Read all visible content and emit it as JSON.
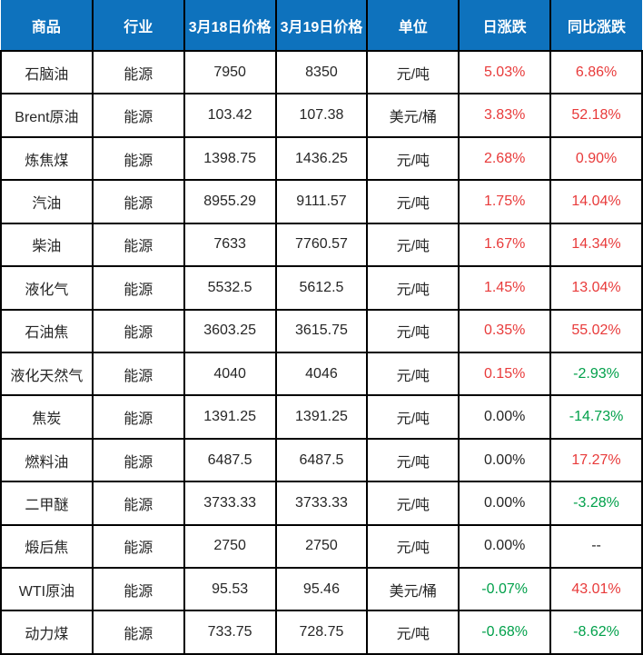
{
  "colors": {
    "header_bg": "#0e72bd",
    "header_text": "#ffffff",
    "up_red": "#e83a3a",
    "down_green": "#00a04a",
    "neutral_text": "#262626",
    "grid_border": "#000000"
  },
  "chart_data": {
    "type": "table",
    "columns": [
      "商品",
      "行业",
      "3月18日价格",
      "3月19日价格",
      "单位",
      "日涨跌",
      "同比涨跌"
    ],
    "rows": [
      {
        "name": "石脑油",
        "industry": "能源",
        "price_mar18": "7950",
        "price_mar19": "8350",
        "unit": "元/吨",
        "daily_change": "5.03%",
        "daily_tone": "up",
        "yoy_change": "6.86%",
        "yoy_tone": "up"
      },
      {
        "name": "Brent原油",
        "industry": "能源",
        "price_mar18": "103.42",
        "price_mar19": "107.38",
        "unit": "美元/桶",
        "daily_change": "3.83%",
        "daily_tone": "up",
        "yoy_change": "52.18%",
        "yoy_tone": "up"
      },
      {
        "name": "炼焦煤",
        "industry": "能源",
        "price_mar18": "1398.75",
        "price_mar19": "1436.25",
        "unit": "元/吨",
        "daily_change": "2.68%",
        "daily_tone": "up",
        "yoy_change": "0.90%",
        "yoy_tone": "up"
      },
      {
        "name": "汽油",
        "industry": "能源",
        "price_mar18": "8955.29",
        "price_mar19": "9111.57",
        "unit": "元/吨",
        "daily_change": "1.75%",
        "daily_tone": "up",
        "yoy_change": "14.04%",
        "yoy_tone": "up"
      },
      {
        "name": "柴油",
        "industry": "能源",
        "price_mar18": "7633",
        "price_mar19": "7760.57",
        "unit": "元/吨",
        "daily_change": "1.67%",
        "daily_tone": "up",
        "yoy_change": "14.34%",
        "yoy_tone": "up"
      },
      {
        "name": "液化气",
        "industry": "能源",
        "price_mar18": "5532.5",
        "price_mar19": "5612.5",
        "unit": "元/吨",
        "daily_change": "1.45%",
        "daily_tone": "up",
        "yoy_change": "13.04%",
        "yoy_tone": "up"
      },
      {
        "name": "石油焦",
        "industry": "能源",
        "price_mar18": "3603.25",
        "price_mar19": "3615.75",
        "unit": "元/吨",
        "daily_change": "0.35%",
        "daily_tone": "up",
        "yoy_change": "55.02%",
        "yoy_tone": "up"
      },
      {
        "name": "液化天然气",
        "industry": "能源",
        "price_mar18": "4040",
        "price_mar19": "4046",
        "unit": "元/吨",
        "daily_change": "0.15%",
        "daily_tone": "up",
        "yoy_change": "-2.93%",
        "yoy_tone": "down"
      },
      {
        "name": "焦炭",
        "industry": "能源",
        "price_mar18": "1391.25",
        "price_mar19": "1391.25",
        "unit": "元/吨",
        "daily_change": "0.00%",
        "daily_tone": "flat",
        "yoy_change": "-14.73%",
        "yoy_tone": "down"
      },
      {
        "name": "燃料油",
        "industry": "能源",
        "price_mar18": "6487.5",
        "price_mar19": "6487.5",
        "unit": "元/吨",
        "daily_change": "0.00%",
        "daily_tone": "flat",
        "yoy_change": "17.27%",
        "yoy_tone": "up"
      },
      {
        "name": "二甲醚",
        "industry": "能源",
        "price_mar18": "3733.33",
        "price_mar19": "3733.33",
        "unit": "元/吨",
        "daily_change": "0.00%",
        "daily_tone": "flat",
        "yoy_change": "-3.28%",
        "yoy_tone": "down"
      },
      {
        "name": "煅后焦",
        "industry": "能源",
        "price_mar18": "2750",
        "price_mar19": "2750",
        "unit": "元/吨",
        "daily_change": "0.00%",
        "daily_tone": "flat",
        "yoy_change": "--",
        "yoy_tone": "flat"
      },
      {
        "name": "WTI原油",
        "industry": "能源",
        "price_mar18": "95.53",
        "price_mar19": "95.46",
        "unit": "美元/桶",
        "daily_change": "-0.07%",
        "daily_tone": "down",
        "yoy_change": "43.01%",
        "yoy_tone": "up"
      },
      {
        "name": "动力煤",
        "industry": "能源",
        "price_mar18": "733.75",
        "price_mar19": "728.75",
        "unit": "元/吨",
        "daily_change": "-0.68%",
        "daily_tone": "down",
        "yoy_change": "-8.62%",
        "yoy_tone": "down"
      }
    ]
  }
}
